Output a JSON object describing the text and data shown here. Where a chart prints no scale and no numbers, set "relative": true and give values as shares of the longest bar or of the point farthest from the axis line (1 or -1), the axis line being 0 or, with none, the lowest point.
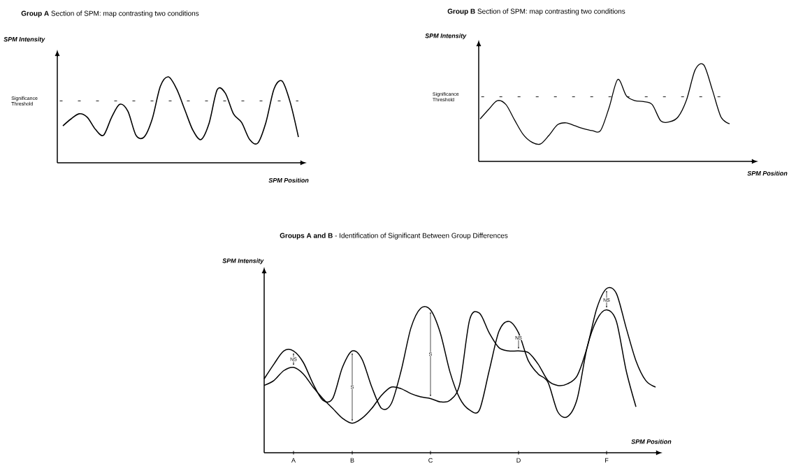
{
  "chart_data": [
    {
      "type": "line",
      "title": "**Group A** Section of SPM: map contrasting two conditions",
      "xlabel": "SPM Position",
      "ylabel": "SPM Intensity",
      "relative": true,
      "categories": [
        null,
        null,
        null,
        null,
        null,
        null,
        null,
        null,
        null,
        null,
        null,
        null,
        null,
        null,
        null,
        null,
        null,
        null,
        null,
        null,
        null,
        null,
        null,
        null,
        null,
        null,
        null,
        null,
        null,
        null
      ],
      "series": [
        {
          "color": "#000000",
          "values": [
            0.43,
            0.51,
            0.57,
            0.53,
            0.39,
            0.32,
            0.53,
            0.68,
            0.6,
            0.32,
            0.3,
            0.51,
            0.89,
            1.0,
            0.86,
            0.62,
            0.38,
            0.27,
            0.46,
            0.85,
            0.81,
            0.57,
            0.47,
            0.27,
            0.23,
            0.47,
            0.86,
            0.95,
            0.7,
            0.3
          ]
        }
      ],
      "ref_lines": [
        {
          "axis": "y",
          "value": 0.72,
          "label": "Significance Threshold",
          "line_style": "dashed"
        }
      ]
    },
    {
      "type": "line",
      "title": "**Group B** Section of SPM: map contrasting two conditions",
      "xlabel": "SPM Position",
      "ylabel": "SPM Intensity",
      "relative": true,
      "categories": [
        null,
        null,
        null,
        null,
        null,
        null,
        null,
        null,
        null,
        null,
        null,
        null,
        null,
        null,
        null,
        null,
        null,
        null,
        null,
        null,
        null,
        null,
        null,
        null,
        null,
        null,
        null,
        null,
        null,
        null
      ],
      "series": [
        {
          "color": "#000000",
          "values": [
            0.44,
            0.54,
            0.63,
            0.59,
            0.43,
            0.28,
            0.2,
            0.18,
            0.27,
            0.38,
            0.4,
            0.37,
            0.34,
            0.32,
            0.32,
            0.56,
            0.85,
            0.68,
            0.63,
            0.62,
            0.59,
            0.42,
            0.41,
            0.46,
            0.64,
            0.95,
            1.0,
            0.74,
            0.46,
            0.39
          ]
        }
      ],
      "ref_lines": [
        {
          "axis": "y",
          "value": 0.67,
          "label": "Significance Threshold",
          "line_style": "dashed"
        }
      ]
    },
    {
      "type": "line",
      "title": "**Groups A and B** - Identification of Significant Between Group Differences",
      "xlabel": "SPM Position",
      "ylabel": "SPM Intensity",
      "relative": true,
      "categories": [
        null,
        null,
        null,
        "A",
        null,
        null,
        null,
        null,
        null,
        "B",
        null,
        null,
        null,
        null,
        null,
        null,
        null,
        "C",
        null,
        null,
        null,
        null,
        null,
        null,
        null,
        null,
        "D",
        null,
        null,
        null,
        null,
        null,
        null,
        null,
        null,
        "F",
        null,
        null,
        null,
        null,
        null
      ],
      "series": [
        {
          "color": "#000000",
          "values": [
            0.45,
            0.54,
            0.62,
            0.62,
            0.55,
            0.42,
            0.32,
            0.33,
            0.52,
            0.62,
            0.57,
            0.4,
            0.27,
            0.3,
            0.5,
            0.76,
            0.88,
            0.87,
            0.73,
            0.49,
            0.33,
            0.26,
            0.26,
            0.5,
            0.74,
            0.8,
            0.73,
            0.56,
            0.48,
            0.43,
            0.25,
            0.22,
            0.33,
            0.64,
            0.81,
            0.87,
            0.8,
            0.5,
            0.28,
            null,
            null
          ]
        },
        {
          "color": "#000000",
          "values": [
            0.41,
            0.44,
            0.5,
            0.52,
            0.48,
            0.4,
            0.33,
            0.27,
            0.21,
            0.18,
            0.21,
            0.27,
            0.35,
            0.4,
            0.39,
            0.36,
            0.34,
            0.33,
            0.31,
            0.32,
            0.42,
            0.81,
            0.85,
            0.73,
            0.64,
            0.62,
            0.62,
            0.61,
            0.54,
            0.44,
            0.41,
            0.42,
            0.47,
            0.64,
            0.88,
            1.0,
            0.97,
            0.76,
            0.56,
            0.44,
            0.4
          ]
        }
      ],
      "annotations": [
        {
          "text": "NS",
          "x": "A",
          "y": 0.57
        },
        {
          "text": "S",
          "x": "B",
          "y": 0.4
        },
        {
          "text": "S",
          "x": "C",
          "y": 0.6
        },
        {
          "text": "NS",
          "x": "D",
          "y": 0.7
        },
        {
          "text": "NS",
          "x": "F",
          "y": 0.93
        }
      ]
    }
  ]
}
